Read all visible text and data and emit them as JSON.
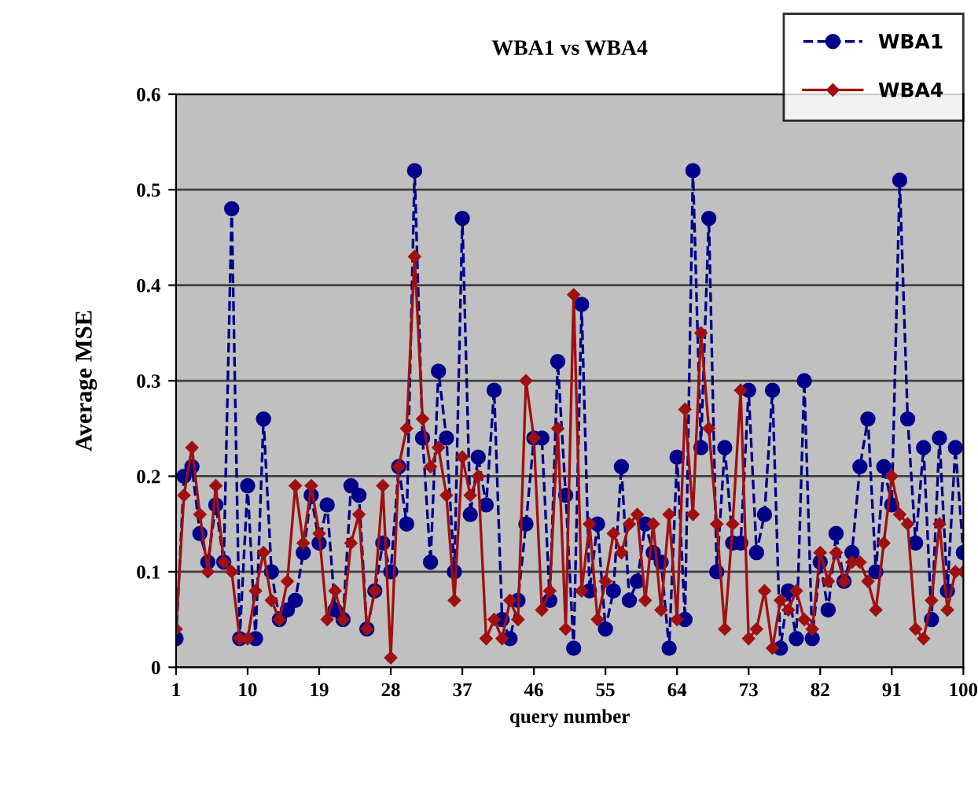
{
  "chart_data": {
    "type": "line",
    "title": "WBA1 vs WBA4",
    "xlabel": "query number",
    "ylabel": "Average MSE",
    "x": [
      1,
      2,
      3,
      4,
      5,
      6,
      7,
      8,
      9,
      10,
      11,
      12,
      13,
      14,
      15,
      16,
      17,
      18,
      19,
      20,
      21,
      22,
      23,
      24,
      25,
      26,
      27,
      28,
      29,
      30,
      31,
      32,
      33,
      34,
      35,
      36,
      37,
      38,
      39,
      40,
      41,
      42,
      43,
      44,
      45,
      46,
      47,
      48,
      49,
      50,
      51,
      52,
      53,
      54,
      55,
      56,
      57,
      58,
      59,
      60,
      61,
      62,
      63,
      64,
      65,
      66,
      67,
      68,
      69,
      70,
      71,
      72,
      73,
      74,
      75,
      76,
      77,
      78,
      79,
      80,
      81,
      82,
      83,
      84,
      85,
      86,
      87,
      88,
      89,
      90,
      91,
      92,
      93,
      94,
      95,
      96,
      97,
      98,
      99,
      100
    ],
    "series": [
      {
        "name": "WBA1",
        "color": "#00008b",
        "line_style": "dashed",
        "marker": "circle",
        "values": [
          0.03,
          0.2,
          0.21,
          0.14,
          0.11,
          0.17,
          0.11,
          0.48,
          0.03,
          0.19,
          0.03,
          0.26,
          0.1,
          0.05,
          0.06,
          0.07,
          0.12,
          0.18,
          0.13,
          0.17,
          0.06,
          0.05,
          0.19,
          0.18,
          0.04,
          0.08,
          0.13,
          0.1,
          0.21,
          0.15,
          0.52,
          0.24,
          0.11,
          0.31,
          0.24,
          0.1,
          0.47,
          0.16,
          0.22,
          0.17,
          0.29,
          0.05,
          0.03,
          0.07,
          0.15,
          0.24,
          0.24,
          0.07,
          0.32,
          0.18,
          0.02,
          0.38,
          0.08,
          0.15,
          0.04,
          0.08,
          0.21,
          0.07,
          0.09,
          0.15,
          0.12,
          0.11,
          0.02,
          0.22,
          0.05,
          0.52,
          0.23,
          0.47,
          0.1,
          0.23,
          0.13,
          0.13,
          0.29,
          0.12,
          0.16,
          0.29,
          0.02,
          0.08,
          0.03,
          0.3,
          0.03,
          0.11,
          0.06,
          0.14,
          0.09,
          0.12,
          0.21,
          0.26,
          0.1,
          0.21,
          0.17,
          0.51,
          0.26,
          0.13,
          0.23,
          0.05,
          0.24,
          0.08,
          0.23,
          0.12
        ]
      },
      {
        "name": "WBA4",
        "color": "#a01010",
        "line_style": "solid",
        "marker": "diamond",
        "values": [
          0.04,
          0.18,
          0.23,
          0.16,
          0.1,
          0.19,
          0.11,
          0.1,
          0.03,
          0.03,
          0.08,
          0.12,
          0.07,
          0.05,
          0.09,
          0.19,
          0.13,
          0.19,
          0.14,
          0.05,
          0.08,
          0.05,
          0.13,
          0.16,
          0.04,
          0.08,
          0.19,
          0.01,
          0.21,
          0.25,
          0.43,
          0.26,
          0.21,
          0.23,
          0.18,
          0.07,
          0.22,
          0.18,
          0.2,
          0.03,
          0.05,
          0.03,
          0.07,
          0.05,
          0.3,
          0.24,
          0.06,
          0.08,
          0.25,
          0.04,
          0.39,
          0.08,
          0.15,
          0.05,
          0.09,
          0.14,
          0.12,
          0.15,
          0.16,
          0.07,
          0.15,
          0.06,
          0.16,
          0.05,
          0.27,
          0.16,
          0.35,
          0.25,
          0.15,
          0.04,
          0.15,
          0.29,
          0.03,
          0.04,
          0.08,
          0.02,
          0.07,
          0.06,
          0.08,
          0.05,
          0.04,
          0.12,
          0.09,
          0.12,
          0.09,
          0.11,
          0.11,
          0.09,
          0.06,
          0.13,
          0.2,
          0.16,
          0.15,
          0.04,
          0.03,
          0.07,
          0.15,
          0.06,
          0.1,
          0.1
        ]
      }
    ],
    "xlim": [
      1,
      100
    ],
    "xticks": [
      1,
      10,
      19,
      28,
      37,
      46,
      55,
      64,
      73,
      82,
      91,
      100
    ],
    "ylim": [
      0,
      0.6
    ],
    "yticks": [
      0,
      0.1,
      0.2,
      0.3,
      0.4,
      0.5,
      0.6
    ],
    "grid": "y",
    "legend": "top right"
  }
}
